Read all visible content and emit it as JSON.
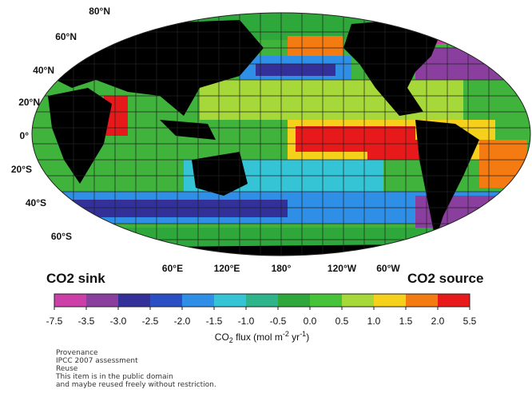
{
  "map": {
    "lat_labels": [
      "80°N",
      "60°N",
      "40°N",
      "20°N",
      "0°",
      "20°S",
      "40°S",
      "60°S"
    ],
    "lon_labels": [
      "60°E",
      "120°E",
      "180°",
      "120°W",
      "60°W"
    ],
    "sink_label": "CO2 sink",
    "source_label": "CO2 source"
  },
  "colorbar": {
    "ticks": [
      -7.5,
      -3.5,
      {
        "value": -3,
        "label": "-3.0"
      },
      -2.5,
      {
        "value": -2,
        "label": "-2.0"
      },
      -1.5,
      {
        "value": -1,
        "label": "-1.0"
      },
      -0.5,
      {
        "value": 0,
        "label": "0.0"
      },
      0.5,
      {
        "value": 1,
        "label": "1.0"
      },
      1.5,
      {
        "value": 2,
        "label": "2.0"
      },
      5.5
    ],
    "colors": [
      "#cc3fa8",
      "#8a3f9e",
      "#33309a",
      "#2a4fc4",
      "#2f8fe6",
      "#35c3d6",
      "#2db48a",
      "#2ea83a",
      "#47c33a",
      "#a6d83a",
      "#f5d11b",
      "#f47a12",
      "#e8191a"
    ],
    "label_parts": [
      "CO",
      "2",
      " flux (mol m",
      "-2",
      " yr",
      "-1",
      ")"
    ]
  },
  "provenance": [
    "Provenance",
    "IPCC 2007 assessment",
    "Reuse",
    "This item is in the public domain",
    "and maybe reused freely without restriction."
  ]
}
